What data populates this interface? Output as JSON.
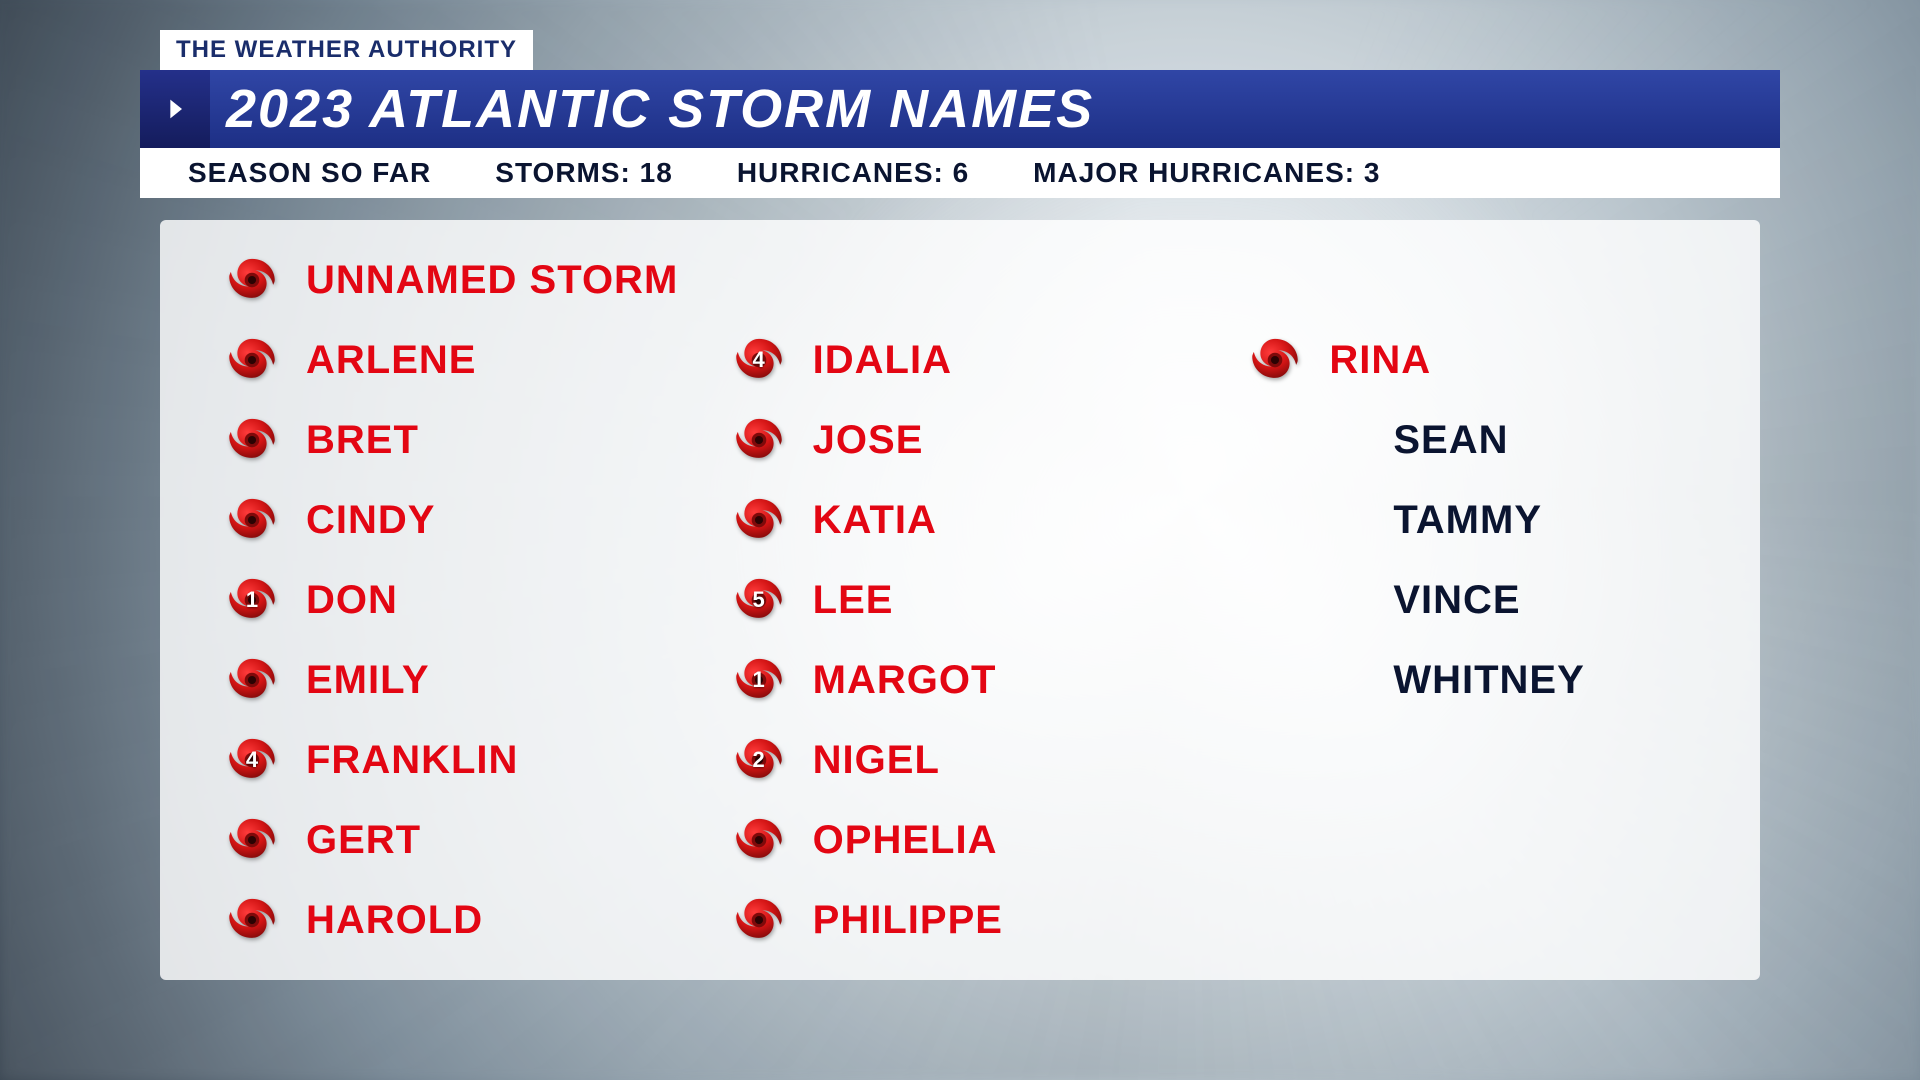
{
  "branding": {
    "tag": "THE WEATHER AUTHORITY"
  },
  "title": "2023 ATLANTIC STORM NAMES",
  "stats": {
    "label": "SEASON SO FAR",
    "storms_label": "STORMS:",
    "storms": "18",
    "hurricanes_label": "HURRICANES:",
    "hurricanes": "6",
    "majors_label": "MAJOR HURRICANES:",
    "majors": "3"
  },
  "style": {
    "accent_blue": "#24308a",
    "header_grad_top": "#3046a6",
    "header_grad_bot": "#1d2f85",
    "active_color": "#e30613",
    "inactive_color": "#0a1430",
    "panel_bg": "rgba(255,255,255,0.82)",
    "icon_fill_top": "#ef1a1a",
    "icon_fill_bot": "#8c0b0b",
    "title_fontsize": 54,
    "name_fontsize": 40,
    "subbar_fontsize": 28
  },
  "columns": [
    [
      {
        "name": "UNNAMED STORM",
        "active": true,
        "icon": true,
        "category": null
      },
      {
        "name": "ARLENE",
        "active": true,
        "icon": true,
        "category": null
      },
      {
        "name": "BRET",
        "active": true,
        "icon": true,
        "category": null
      },
      {
        "name": "CINDY",
        "active": true,
        "icon": true,
        "category": null
      },
      {
        "name": "DON",
        "active": true,
        "icon": true,
        "category": "1"
      },
      {
        "name": "EMILY",
        "active": true,
        "icon": true,
        "category": null
      },
      {
        "name": "FRANKLIN",
        "active": true,
        "icon": true,
        "category": "4"
      },
      {
        "name": "GERT",
        "active": true,
        "icon": true,
        "category": null
      },
      {
        "name": "HAROLD",
        "active": true,
        "icon": true,
        "category": null
      }
    ],
    [
      {
        "name": "IDALIA",
        "active": true,
        "icon": true,
        "category": "4"
      },
      {
        "name": "JOSE",
        "active": true,
        "icon": true,
        "category": null
      },
      {
        "name": "KATIA",
        "active": true,
        "icon": true,
        "category": null
      },
      {
        "name": "LEE",
        "active": true,
        "icon": true,
        "category": "5"
      },
      {
        "name": "MARGOT",
        "active": true,
        "icon": true,
        "category": "1"
      },
      {
        "name": "NIGEL",
        "active": true,
        "icon": true,
        "category": "2"
      },
      {
        "name": "OPHELIA",
        "active": true,
        "icon": true,
        "category": null
      },
      {
        "name": "PHILIPPE",
        "active": true,
        "icon": true,
        "category": null
      }
    ],
    [
      {
        "name": "RINA",
        "active": true,
        "icon": true,
        "category": null
      },
      {
        "name": "SEAN",
        "active": false,
        "icon": false,
        "category": null
      },
      {
        "name": "TAMMY",
        "active": false,
        "icon": false,
        "category": null
      },
      {
        "name": "VINCE",
        "active": false,
        "icon": false,
        "category": null
      },
      {
        "name": "WHITNEY",
        "active": false,
        "icon": false,
        "category": null
      }
    ]
  ]
}
